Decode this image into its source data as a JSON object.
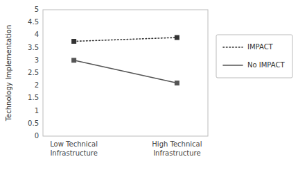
{
  "chart_data": {
    "type": "line",
    "categories": [
      "Low Technical\nInfrastructure",
      "High Technical\nInfrastructure"
    ],
    "y_label": "Technology Implementation",
    "ylim": [
      0,
      5
    ],
    "yticks": [
      0,
      0.5,
      1,
      1.5,
      2,
      2.5,
      3,
      3.5,
      4,
      4.5,
      5
    ],
    "grid": false,
    "legend": "right",
    "series": [
      {
        "name": "IMPACT",
        "color": "#333333",
        "line_style": "dotted",
        "marker": "square",
        "values": [
          3.75,
          3.9
        ]
      },
      {
        "name": "No IMPACT",
        "color": "#555555",
        "line_style": "solid",
        "marker": "square",
        "values": [
          3.0,
          2.1
        ]
      }
    ]
  }
}
